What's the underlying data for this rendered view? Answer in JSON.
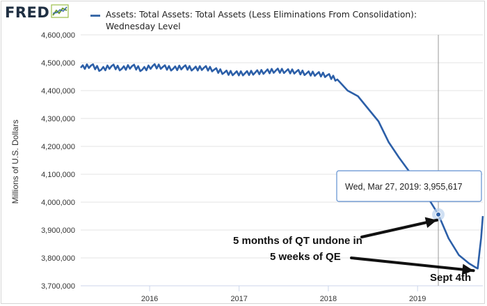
{
  "header": {
    "logo_text": "FRED",
    "logo_icon": "trend-chart-icon",
    "series_title": "Assets: Total Assets: Total Assets (Less Eliminations From Consolidation): Wednesday Level"
  },
  "colors": {
    "series": "#2c5fa8",
    "grid": "#e3e3e3",
    "accent": "#3b6aa8"
  },
  "chart_data": {
    "type": "line",
    "title": "Assets: Total Assets: Total Assets (Less Eliminations From Consolidation): Wednesday Level",
    "xlabel": "",
    "ylabel": "Millions of U.S. Dollars",
    "xlim": [
      "2015-03-25",
      "2019-09-25"
    ],
    "ylim": [
      3700000,
      4600000
    ],
    "grid": true,
    "yticks": [
      "3,700,000",
      "3,800,000",
      "3,900,000",
      "4,000,000",
      "4,100,000",
      "4,200,000",
      "4,300,000",
      "4,400,000",
      "4,500,000",
      "4,600,000"
    ],
    "xticks": [
      "2016",
      "2017",
      "2018",
      "2019"
    ],
    "series": [
      {
        "name": "",
        "points": [
          [
            "2015-03-25",
            4482000
          ],
          [
            "2015-05-06",
            4490000
          ],
          [
            "2015-06-17",
            4475000
          ],
          [
            "2015-07-29",
            4488000
          ],
          [
            "2015-09-09",
            4478000
          ],
          [
            "2015-10-21",
            4488000
          ],
          [
            "2015-12-02",
            4475000
          ],
          [
            "2016-01-13",
            4488000
          ],
          [
            "2016-02-24",
            4485000
          ],
          [
            "2016-04-06",
            4478000
          ],
          [
            "2016-05-18",
            4485000
          ],
          [
            "2016-06-29",
            4478000
          ],
          [
            "2016-08-10",
            4482000
          ],
          [
            "2016-09-21",
            4475000
          ],
          [
            "2016-11-02",
            4465000
          ],
          [
            "2016-12-14",
            4462000
          ],
          [
            "2017-01-25",
            4462000
          ],
          [
            "2017-03-08",
            4465000
          ],
          [
            "2017-04-19",
            4468000
          ],
          [
            "2017-05-31",
            4472000
          ],
          [
            "2017-07-12",
            4470000
          ],
          [
            "2017-08-23",
            4468000
          ],
          [
            "2017-10-04",
            4462000
          ],
          [
            "2017-11-15",
            4460000
          ],
          [
            "2017-12-27",
            4455000
          ],
          [
            "2018-02-07",
            4440000
          ],
          [
            "2018-03-21",
            4400000
          ],
          [
            "2018-05-02",
            4380000
          ],
          [
            "2018-06-13",
            4335000
          ],
          [
            "2018-07-25",
            4290000
          ],
          [
            "2018-09-05",
            4215000
          ],
          [
            "2018-10-17",
            4160000
          ],
          [
            "2018-11-28",
            4110000
          ],
          [
            "2019-01-09",
            4060000
          ],
          [
            "2019-02-20",
            4005000
          ],
          [
            "2019-03-27",
            3955617
          ],
          [
            "2019-05-08",
            3870000
          ],
          [
            "2019-06-19",
            3810000
          ],
          [
            "2019-07-31",
            3780000
          ],
          [
            "2019-08-28",
            3765000
          ],
          [
            "2019-09-04",
            3762000
          ],
          [
            "2019-09-11",
            3818000
          ],
          [
            "2019-09-18",
            3870000
          ],
          [
            "2019-09-25",
            3950000
          ]
        ]
      }
    ],
    "tooltip": {
      "date": "2019-03-27",
      "text": "Wed, Mar 27, 2019: 3,955,617"
    },
    "annotations": [
      {
        "text": "5 months of QT undone in",
        "target_date": "2019-03-27",
        "target_value": 3955617
      },
      {
        "text": "5 weeks of QE",
        "target_date": "2019-09-04",
        "target_value": 3762000
      },
      {
        "text": "Sept 4th"
      }
    ]
  }
}
